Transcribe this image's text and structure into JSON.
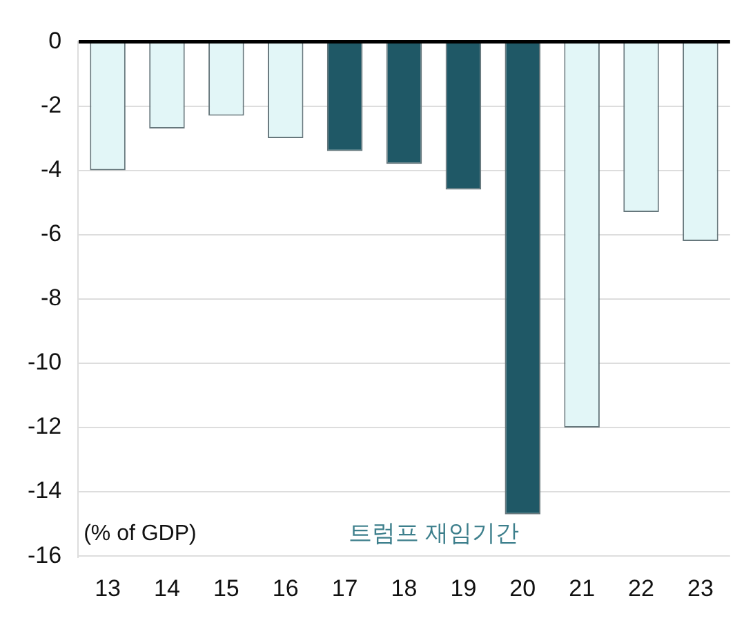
{
  "chart_data": {
    "type": "bar",
    "categories": [
      "13",
      "14",
      "15",
      "16",
      "17",
      "18",
      "19",
      "20",
      "21",
      "22",
      "23"
    ],
    "values": [
      -4.0,
      -2.7,
      -2.3,
      -3.0,
      -3.4,
      -3.8,
      -4.6,
      -14.7,
      -12.0,
      -5.3,
      -6.2
    ],
    "colors": [
      "#e2f6f7",
      "#e2f6f7",
      "#e2f6f7",
      "#e2f6f7",
      "#1f5866",
      "#1f5866",
      "#1f5866",
      "#1f5866",
      "#e2f6f7",
      "#e2f6f7",
      "#e2f6f7"
    ],
    "ylim": [
      -16,
      0
    ],
    "yticks": [
      0,
      -2,
      -4,
      -6,
      -8,
      -10,
      -12,
      -14,
      -16
    ],
    "grid": "y",
    "annotations": [
      "(% of GDP)",
      "트럼프 재임기간"
    ]
  }
}
